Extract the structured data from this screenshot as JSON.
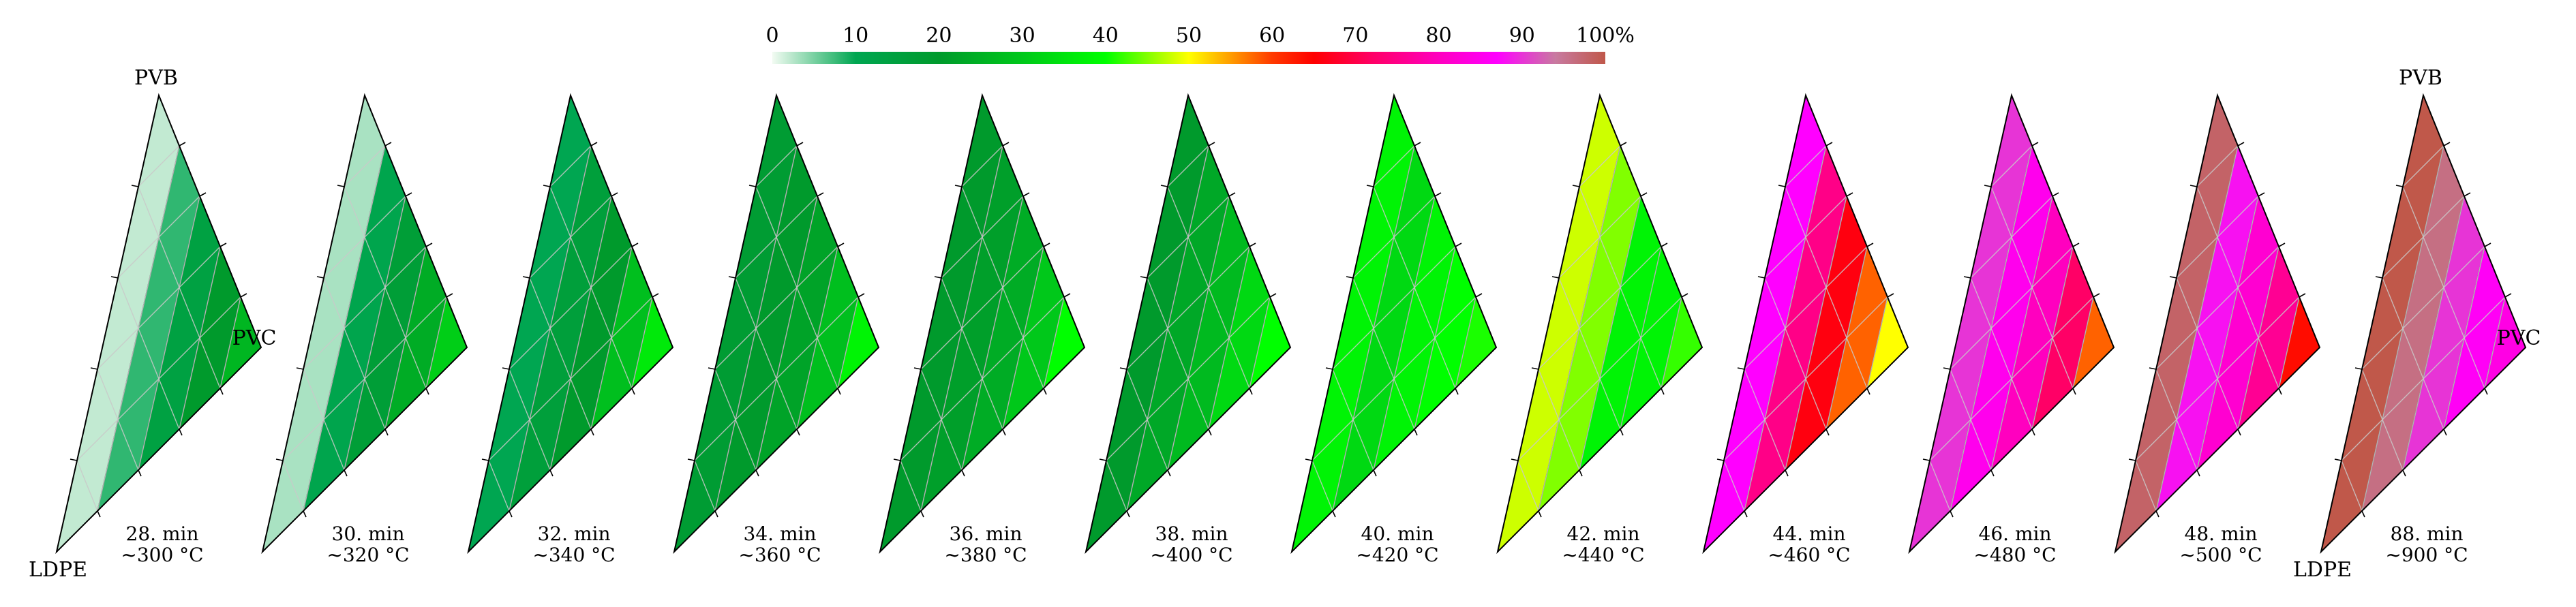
{
  "chart_data": {
    "type": "heatmap",
    "description_kind": "ternary",
    "corner_labels": {
      "top": "PVB",
      "right": "PVC",
      "bottom": "LDPE"
    },
    "colorbar": {
      "tick_labels": [
        "0",
        "10",
        "20",
        "30",
        "40",
        "50",
        "60",
        "70",
        "80",
        "90",
        "100%"
      ],
      "tick_values": [
        0,
        10,
        20,
        30,
        40,
        50,
        60,
        70,
        80,
        90,
        100
      ],
      "stops": [
        {
          "value": 0,
          "color": "#f2fbf2"
        },
        {
          "value": 10,
          "color": "#00a651"
        },
        {
          "value": 20,
          "color": "#009a2c"
        },
        {
          "value": 30,
          "color": "#00c81a"
        },
        {
          "value": 40,
          "color": "#00ff00"
        },
        {
          "value": 46,
          "color": "#9bff00"
        },
        {
          "value": 50,
          "color": "#ffff00"
        },
        {
          "value": 55,
          "color": "#ff9d00"
        },
        {
          "value": 60,
          "color": "#ff3a00"
        },
        {
          "value": 65,
          "color": "#ff0000"
        },
        {
          "value": 72,
          "color": "#ff0066"
        },
        {
          "value": 80,
          "color": "#ff00bf"
        },
        {
          "value": 87,
          "color": "#ff00ff"
        },
        {
          "value": 94,
          "color": "#c87aa0"
        },
        {
          "value": 100,
          "color": "#c0584a"
        }
      ]
    },
    "panels": [
      {
        "time": "28. min",
        "temp": "~300 °C",
        "band_values": [
          2,
          8,
          14,
          20,
          26
        ],
        "show_corner_labels": true
      },
      {
        "time": "30. min",
        "temp": "~320 °C",
        "band_values": [
          3,
          11,
          17,
          24,
          31
        ]
      },
      {
        "time": "32. min",
        "temp": "~340 °C",
        "band_values": [
          10,
          16,
          20,
          28,
          36
        ]
      },
      {
        "time": "34. min",
        "temp": "~360 °C",
        "band_values": [
          18,
          20,
          22,
          28,
          38
        ]
      },
      {
        "time": "36. min",
        "temp": "~380 °C",
        "band_values": [
          20,
          21,
          24,
          30,
          40
        ]
      },
      {
        "time": "38. min",
        "temp": "~400 °C",
        "band_values": [
          20,
          23,
          27,
          33,
          40
        ]
      },
      {
        "time": "40. min",
        "temp": "~420 °C",
        "band_values": [
          38,
          33,
          38,
          40,
          41
        ]
      },
      {
        "time": "42. min",
        "temp": "~440 °C",
        "band_values": [
          48,
          45,
          38,
          38,
          42
        ]
      },
      {
        "time": "44. min",
        "temp": "~460 °C",
        "band_values": [
          87,
          75,
          66,
          58,
          50
        ]
      },
      {
        "time": "46. min",
        "temp": "~480 °C",
        "band_values": [
          90,
          85,
          80,
          72,
          58
        ]
      },
      {
        "time": "48. min",
        "temp": "~500 °C",
        "band_values": [
          98,
          88,
          82,
          76,
          64
        ]
      },
      {
        "time": "88. min",
        "temp": "~900 °C",
        "band_values": [
          100,
          96,
          90,
          86,
          84
        ],
        "show_corner_labels": true
      }
    ]
  }
}
